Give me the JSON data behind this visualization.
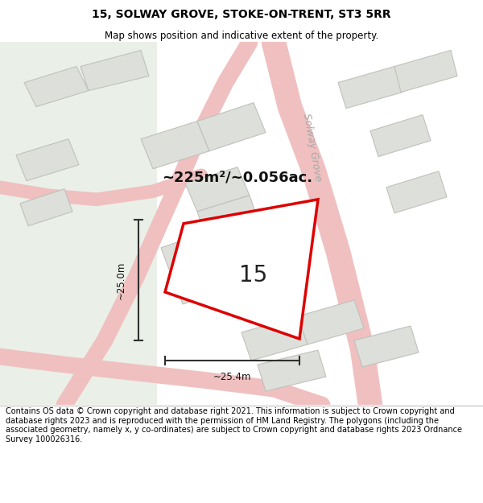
{
  "title_line1": "15, SOLWAY GROVE, STOKE-ON-TRENT, ST3 5RR",
  "title_line2": "Map shows position and indicative extent of the property.",
  "area_text": "~225m²/~0.056ac.",
  "number_label": "15",
  "dim_height": "~25.0m",
  "dim_width": "~25.4m",
  "street_label": "Solway Grove",
  "footer_text": "Contains OS data © Crown copyright and database right 2021. This information is subject to Crown copyright and database rights 2023 and is reproduced with the permission of HM Land Registry. The polygons (including the associated geometry, namely x, y co-ordinates) are subject to Crown copyright and database rights 2023 Ordnance Survey 100026316.",
  "bg_map_color": "#f2f4f0",
  "left_green_color": "#eaf0e8",
  "building_fill": "#dde0da",
  "building_stroke": "#c0c0bc",
  "road_color": "#f0c0c0",
  "road_outline_color": "#e8a8a8",
  "highlight_color": "#dd0000",
  "dim_line_color": "#303030",
  "street_label_color": "#a8a8a8",
  "title_color": "#000000",
  "footer_color": "#000000",
  "white": "#ffffff",
  "map_bg": "#f5f5f0"
}
